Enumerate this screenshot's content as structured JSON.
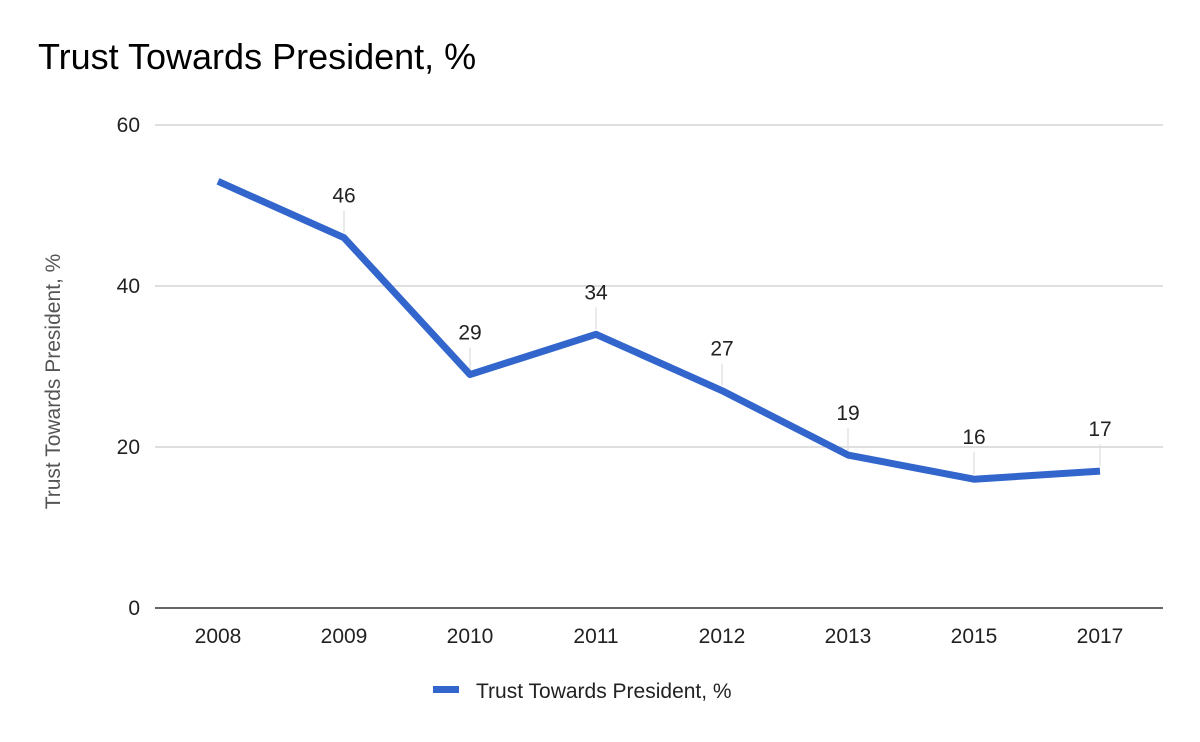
{
  "chart_data": {
    "type": "line",
    "title": "Trust Towards President, %",
    "xlabel": "",
    "ylabel": "Trust Towards President, %",
    "categories": [
      "2008",
      "2009",
      "2010",
      "2011",
      "2012",
      "2013",
      "2015",
      "2017"
    ],
    "series": [
      {
        "name": "Trust Towards President, %",
        "values": [
          53,
          46,
          29,
          34,
          27,
          19,
          16,
          17
        ],
        "data_labels": [
          "",
          "46",
          "29",
          "34",
          "27",
          "19",
          "16",
          "17"
        ],
        "color": "#3366cc"
      }
    ],
    "ylim": [
      0,
      60
    ],
    "yticks": [
      "0",
      "20",
      "40",
      "60"
    ],
    "grid": true,
    "legend_position": "bottom"
  }
}
